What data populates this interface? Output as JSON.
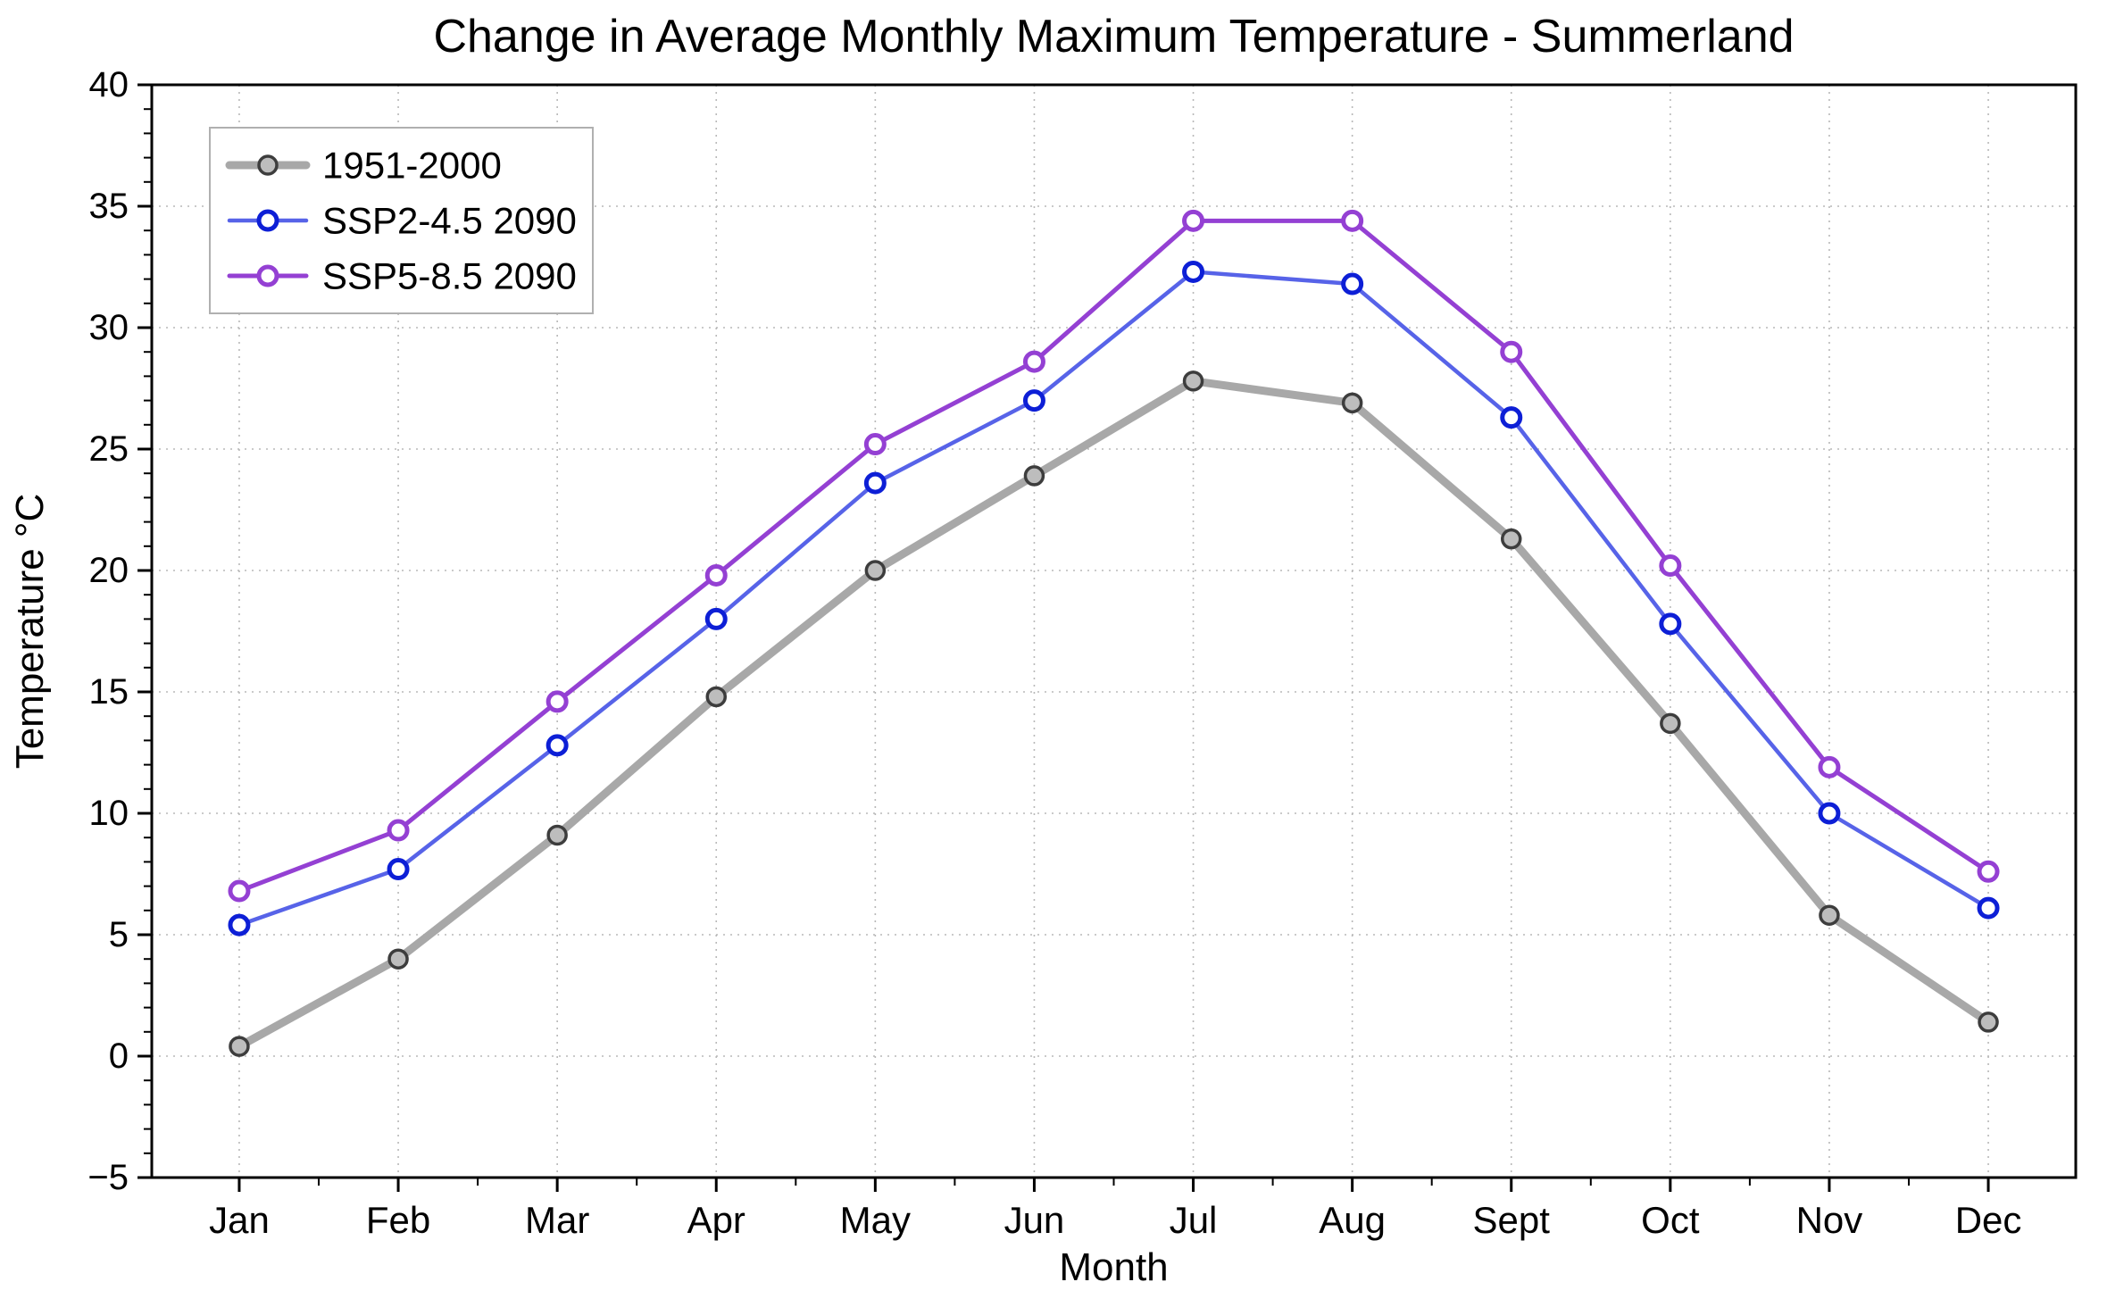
{
  "chart_data": {
    "type": "line",
    "title": "Change in Average Monthly Maximum Temperature - Summerland",
    "xlabel": "Month",
    "ylabel": "Temperature °C",
    "categories": [
      "Jan",
      "Feb",
      "Mar",
      "Apr",
      "May",
      "Jun",
      "Jul",
      "Aug",
      "Sept",
      "Oct",
      "Nov",
      "Dec"
    ],
    "ylim": [
      -5,
      40
    ],
    "yticks": [
      -5,
      0,
      5,
      10,
      15,
      20,
      25,
      30,
      35,
      40
    ],
    "grid": "dotted both axes",
    "legend_position": "upper left",
    "series": [
      {
        "name": "1951-2000",
        "values": [
          0.4,
          4.0,
          9.1,
          14.8,
          20.0,
          23.9,
          27.8,
          26.9,
          21.3,
          13.7,
          5.8,
          1.4
        ],
        "color": "#a8a8a8",
        "line_width": 9,
        "marker_fill": "#bdbdbd",
        "marker_edge": "#3d3d3d",
        "marker_edge_width": 3.5
      },
      {
        "name": "SSP2-4.5 2090",
        "values": [
          5.4,
          7.7,
          12.8,
          18.0,
          23.6,
          27.0,
          32.3,
          31.8,
          26.3,
          17.8,
          10.0,
          6.1
        ],
        "color": "#5763e8",
        "line_width": 4.5,
        "marker_fill": "#ffffff",
        "marker_edge": "#0d1fd6",
        "marker_edge_width": 5
      },
      {
        "name": "SSP5-8.5 2090",
        "values": [
          6.8,
          9.3,
          14.6,
          19.8,
          25.2,
          28.6,
          34.4,
          34.4,
          29.0,
          20.2,
          11.9,
          7.6
        ],
        "color": "#9440d3",
        "line_width": 5,
        "marker_fill": "#ffffff",
        "marker_edge": "#9440d3",
        "marker_edge_width": 5
      }
    ],
    "colors": {
      "grid": "#b8b8b8",
      "axis": "#000000",
      "legend_border": "#b0b0b0",
      "background": "#ffffff"
    }
  }
}
